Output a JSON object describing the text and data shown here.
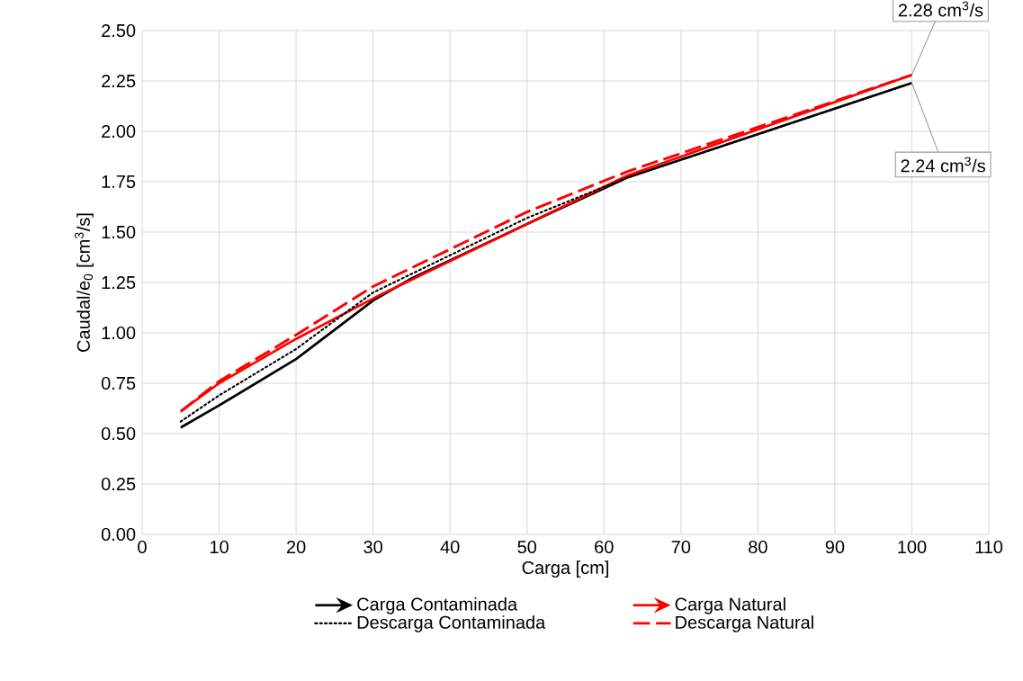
{
  "chart_data": {
    "type": "line",
    "xlabel": "Carga [cm]",
    "ylabel": "Caudal/e$_{0}$ [cm$^{3}$/s]",
    "series": [
      {
        "name": "Carga Contaminada",
        "color": "#000000",
        "line_style": "solid",
        "x": [
          5,
          10,
          20,
          30,
          35,
          50,
          63,
          100
        ],
        "values": [
          0.53,
          0.64,
          0.87,
          1.16,
          1.27,
          1.54,
          1.77,
          2.24
        ]
      },
      {
        "name": "Carga Natural",
        "color": "#ff0000",
        "line_style": "solid",
        "x": [
          5,
          10,
          20,
          31,
          50,
          63,
          100
        ],
        "values": [
          0.61,
          0.75,
          0.97,
          1.19,
          1.54,
          1.78,
          2.28
        ]
      },
      {
        "name": "Descarga Contaminada",
        "color": "#000000",
        "line_style": "dotted",
        "x": [
          5,
          10,
          20,
          30,
          50,
          63,
          100
        ],
        "values": [
          0.56,
          0.69,
          0.92,
          1.2,
          1.57,
          1.77,
          2.24
        ]
      },
      {
        "name": "Descarga Natural",
        "color": "#ff0000",
        "line_style": "dashed",
        "x": [
          5,
          10,
          20,
          30,
          50,
          63,
          100
        ],
        "values": [
          0.61,
          0.76,
          0.99,
          1.23,
          1.6,
          1.8,
          2.28
        ]
      }
    ],
    "annotations": [
      {
        "text": "2.28 cm$^{3}$/s",
        "x": 100,
        "y": 2.28
      },
      {
        "text": "2.24 cm$^{3}$/s",
        "x": 100,
        "y": 2.24
      }
    ],
    "xlim": [
      0,
      110
    ],
    "xticks": [
      0,
      10,
      20,
      30,
      40,
      50,
      60,
      70,
      80,
      90,
      100,
      110
    ],
    "ylim": [
      0,
      2.5
    ],
    "yticks": [
      {
        "value": 0,
        "label": "0.00"
      },
      {
        "value": 0.25,
        "label": "0.25"
      },
      {
        "value": 0.5,
        "label": "0.50"
      },
      {
        "value": 0.75,
        "label": "0.75"
      },
      {
        "value": 1,
        "label": "1.00"
      },
      {
        "value": 1.25,
        "label": "1.25"
      },
      {
        "value": 1.5,
        "label": "1.50"
      },
      {
        "value": 1.75,
        "label": "1.75"
      },
      {
        "value": 2,
        "label": "2.00"
      },
      {
        "value": 2.25,
        "label": "2.25"
      },
      {
        "value": 2.5,
        "label": "2.50"
      }
    ],
    "grid": true,
    "legend": "bottom",
    "marker": "none"
  }
}
